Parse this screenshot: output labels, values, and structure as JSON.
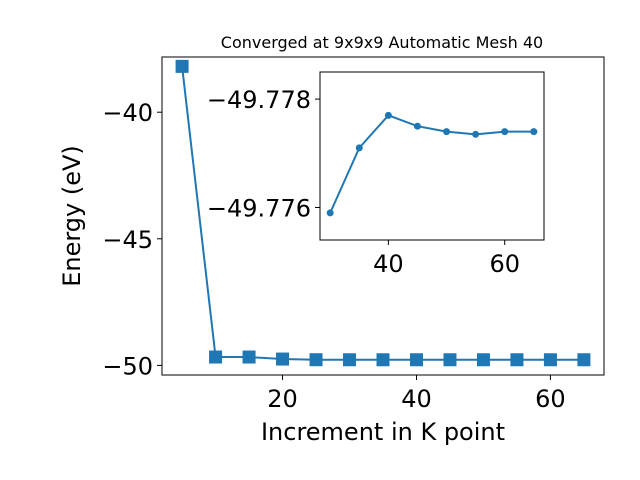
{
  "chart_data": [
    {
      "type": "line",
      "title": "Converged at 9x9x9 Automatic Mesh 40",
      "xlabel": "Increment in K point",
      "ylabel": "Energy (eV)",
      "xlim": [
        2.0,
        68.0
      ],
      "ylim": [
        -50.38,
        -37.82
      ],
      "xticks": [
        20,
        40,
        60
      ],
      "xtick_labels": [
        "20",
        "40",
        "60"
      ],
      "yticks": [
        -40,
        -45,
        -50
      ],
      "ytick_labels": [
        "−40",
        "−45",
        "−50"
      ],
      "marker": "square",
      "color": "#1f77b4",
      "grid": false,
      "series": [
        {
          "x": [
            5,
            10,
            15,
            20,
            25,
            30,
            35,
            40,
            45,
            50,
            55,
            60,
            65
          ],
          "y": [
            -38.19,
            -49.67,
            -49.67,
            -49.75,
            -49.776,
            -49.778,
            -49.778,
            -49.778,
            -49.778,
            -49.778,
            -49.778,
            -49.778,
            -49.778
          ]
        }
      ]
    },
    {
      "type": "line",
      "title": "",
      "xlabel": "",
      "ylabel": "",
      "xlim": [
        28.25,
        66.75
      ],
      "ylim": [
        -49.7754,
        -49.7785
      ],
      "xticks": [
        40,
        60
      ],
      "xtick_labels": [
        "40",
        "60"
      ],
      "yticks": [
        -49.778,
        -49.776
      ],
      "ytick_labels": [
        "−49.778",
        "−49.776"
      ],
      "marker": "circle",
      "color": "#1f77b4",
      "grid": false,
      "series": [
        {
          "x": [
            30,
            35,
            40,
            45,
            50,
            55,
            60,
            65
          ],
          "y": [
            -49.7759,
            -49.7771,
            -49.7777,
            -49.7775,
            -49.7774,
            -49.77735,
            -49.7774,
            -49.7774
          ]
        }
      ]
    }
  ]
}
